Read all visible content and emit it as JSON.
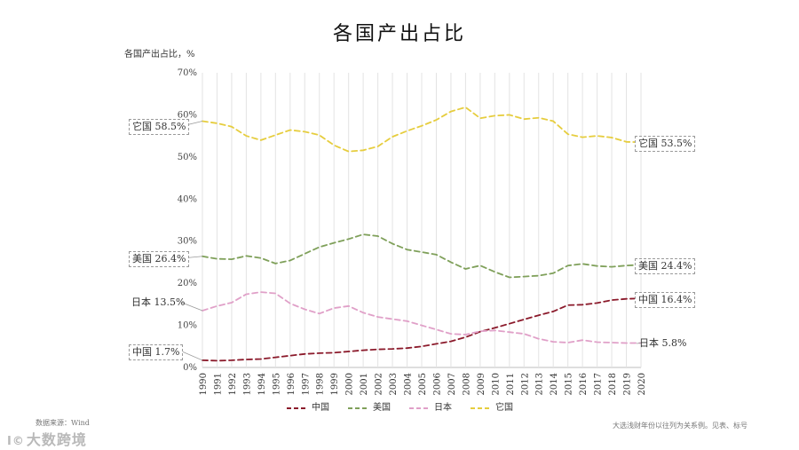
{
  "chart_data": {
    "type": "line",
    "title": "各国产出占比",
    "ylabel": "各国产出占比，%",
    "xlabel": "",
    "ylim": [
      0,
      70
    ],
    "yticks": [
      "0%",
      "10%",
      "20%",
      "30%",
      "40%",
      "50%",
      "60%",
      "70%"
    ],
    "x": [
      "1990",
      "1991",
      "1992",
      "1993",
      "1994",
      "1995",
      "1996",
      "1997",
      "1998",
      "1999",
      "2000",
      "2001",
      "2002",
      "2003",
      "2004",
      "2005",
      "2006",
      "2007",
      "2008",
      "2009",
      "2010",
      "2011",
      "2012",
      "2013",
      "2014",
      "2015",
      "2016",
      "2017",
      "2018",
      "2019",
      "2020"
    ],
    "grid": false,
    "legend_position": "bottom",
    "series": [
      {
        "name": "中国",
        "color": "#8b1a2b",
        "dash": "6,4",
        "values": [
          1.7,
          1.6,
          1.7,
          1.9,
          2.0,
          2.4,
          2.8,
          3.2,
          3.4,
          3.5,
          3.8,
          4.1,
          4.3,
          4.4,
          4.6,
          5.0,
          5.6,
          6.2,
          7.2,
          8.5,
          9.4,
          10.4,
          11.4,
          12.4,
          13.3,
          14.8,
          14.9,
          15.3,
          16.0,
          16.3,
          16.4
        ]
      },
      {
        "name": "美国",
        "color": "#7fa05a",
        "dash": "6,4",
        "values": [
          26.4,
          25.8,
          25.7,
          26.5,
          26.0,
          24.7,
          25.4,
          27.0,
          28.6,
          29.6,
          30.5,
          31.6,
          31.2,
          29.4,
          28.0,
          27.4,
          26.8,
          25.0,
          23.4,
          24.2,
          22.7,
          21.4,
          21.6,
          21.8,
          22.4,
          24.2,
          24.6,
          24.1,
          23.9,
          24.2,
          24.4
        ]
      },
      {
        "name": "日本",
        "color": "#e0a0c8",
        "dash": "6,4",
        "values": [
          13.5,
          14.6,
          15.4,
          17.4,
          17.9,
          17.6,
          15.2,
          13.8,
          12.8,
          14.1,
          14.6,
          13.0,
          12.0,
          11.5,
          11.0,
          10.0,
          9.0,
          8.0,
          7.8,
          8.6,
          8.8,
          8.4,
          8.0,
          6.8,
          6.1,
          5.9,
          6.5,
          6.0,
          5.9,
          5.8,
          5.8
        ]
      },
      {
        "name": "它国",
        "color": "#e6cd3e",
        "dash": "6,4",
        "values": [
          58.5,
          58.0,
          57.2,
          55.0,
          54.0,
          55.2,
          56.4,
          56.0,
          55.2,
          52.8,
          51.3,
          51.6,
          52.5,
          54.8,
          56.2,
          57.4,
          58.8,
          60.8,
          61.8,
          59.2,
          59.8,
          60.0,
          59.0,
          59.3,
          58.5,
          55.4,
          54.7,
          55.0,
          54.6,
          53.6,
          53.5
        ]
      }
    ],
    "annotations": [
      {
        "series": "它国",
        "start_label": "它国 58.5%",
        "end_label": "它国 53.5%"
      },
      {
        "series": "美国",
        "start_label": "美国 26.4%",
        "end_label": "美国 24.4%"
      },
      {
        "series": "日本",
        "start_label": "日本 13.5%",
        "end_label": "日本 5.8%"
      },
      {
        "series": "中国",
        "start_label": "中国 1.7%",
        "end_label": "中国 16.4%"
      }
    ]
  },
  "source": "数据来源：Wind",
  "note": "大选浅财年份以往列为关系例。见表、标号",
  "logo_text": "大数跨境",
  "logo_icon": "cross-border-logo-icon"
}
